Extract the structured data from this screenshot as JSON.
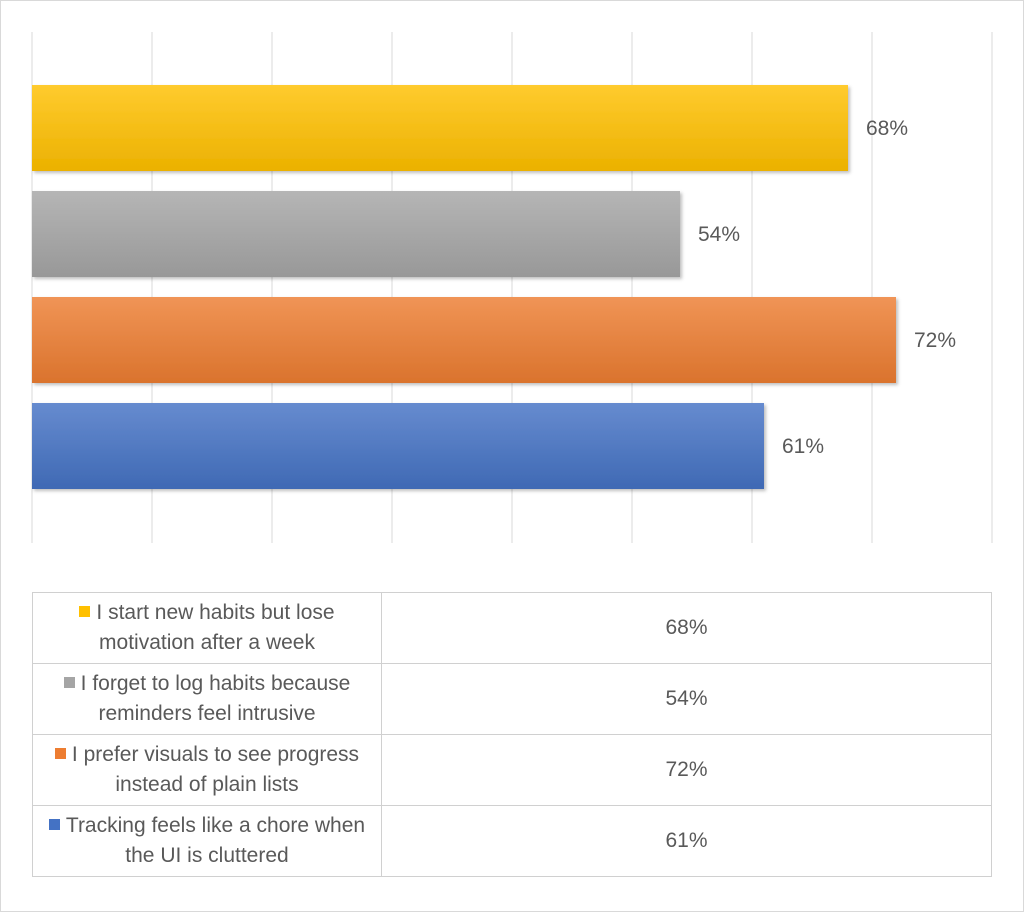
{
  "chart_data": {
    "type": "bar",
    "orientation": "horizontal",
    "categories": [
      "I start new habits but lose motivation after a week",
      "I forget to log habits because reminders feel intrusive",
      "I prefer visuals to see progress instead of plain lists",
      "Tracking feels like a chore when the UI is cluttered"
    ],
    "values": [
      68,
      54,
      72,
      61
    ],
    "value_labels": [
      "68%",
      "54%",
      "72%",
      "61%"
    ],
    "colors": [
      "#FFC000",
      "#A5A5A5",
      "#ED7D31",
      "#4472C4"
    ],
    "xlim": [
      0,
      80
    ],
    "grid": true,
    "legend": "data-table-below",
    "title": "",
    "xlabel": "",
    "ylabel": ""
  },
  "table": {
    "rows": [
      {
        "label": "I start new habits but lose motivation after a week",
        "value": "68%"
      },
      {
        "label": "I forget to log habits because reminders feel intrusive",
        "value": "54%"
      },
      {
        "label": "I prefer visuals to see progress instead of plain lists",
        "value": "72%"
      },
      {
        "label": "Tracking feels like a chore when the UI is cluttered",
        "value": "61%"
      }
    ]
  }
}
